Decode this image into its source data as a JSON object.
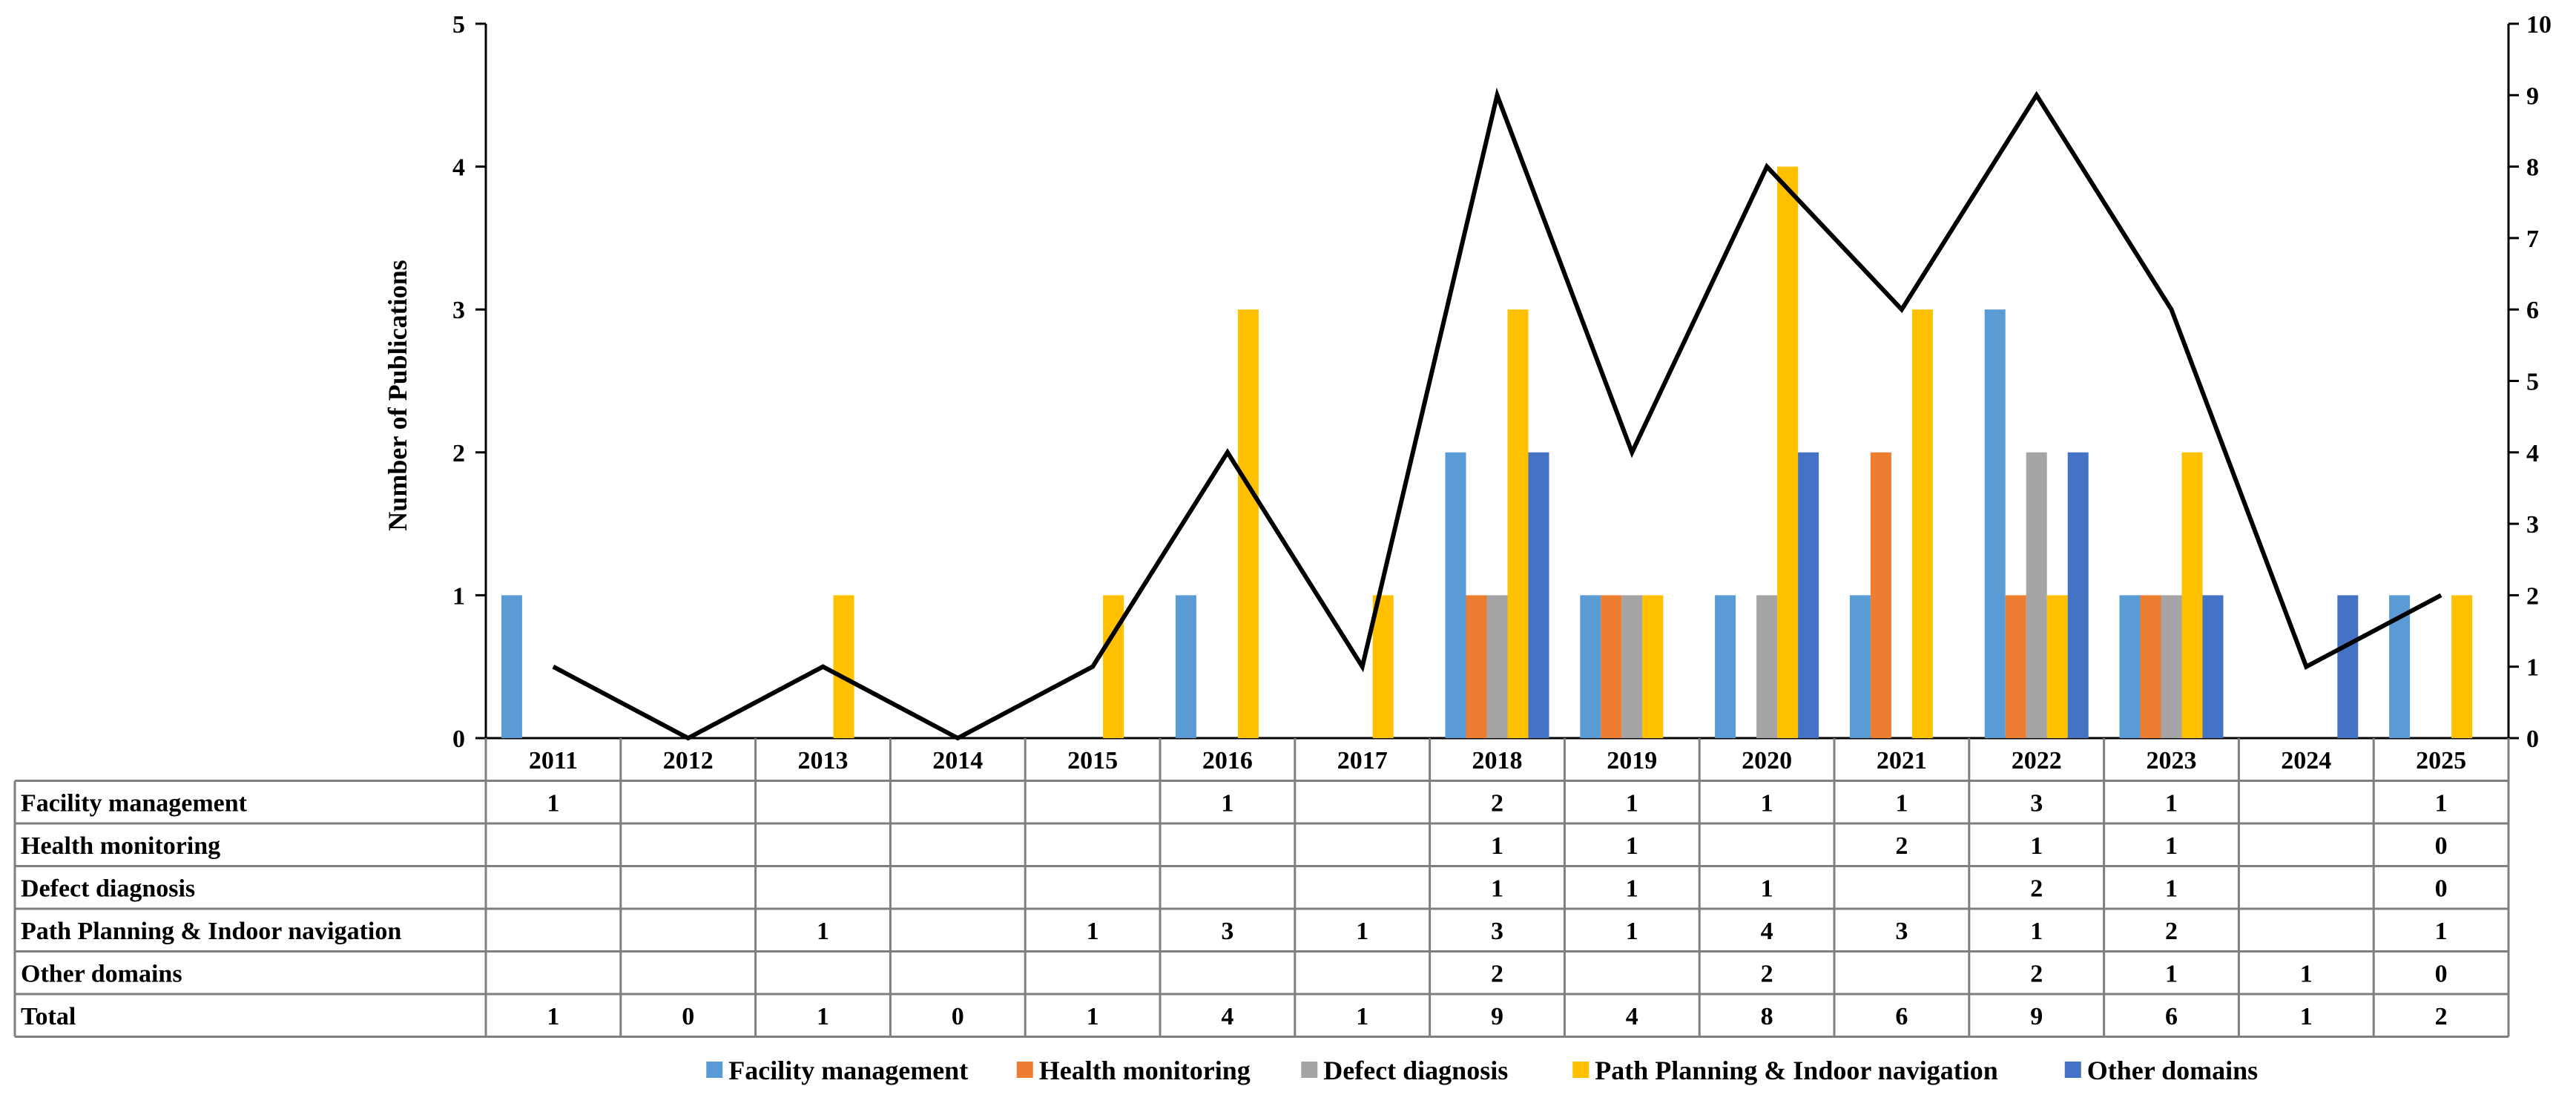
{
  "chart_data": {
    "type": "bar",
    "title": "",
    "ylabel": "Number of Publications",
    "ylim": [
      0,
      5
    ],
    "y2lim": [
      0,
      10
    ],
    "y_ticks": [
      "0",
      "1",
      "2",
      "3",
      "4",
      "5"
    ],
    "y2_ticks": [
      "0",
      "1",
      "2",
      "3",
      "4",
      "5",
      "6",
      "7",
      "8",
      "9",
      "10"
    ],
    "categories": [
      "2011",
      "2012",
      "2013",
      "2014",
      "2015",
      "2016",
      "2017",
      "2018",
      "2019",
      "2020",
      "2021",
      "2022",
      "2023",
      "2024",
      "2025"
    ],
    "series": [
      {
        "name": "Facility management",
        "color": "#5B9BD5",
        "values": [
          1,
          null,
          null,
          null,
          null,
          1,
          null,
          2,
          1,
          1,
          1,
          3,
          1,
          null,
          1
        ],
        "labels": [
          "1",
          "",
          "",
          "",
          "",
          "1",
          "",
          "2",
          "1",
          "1",
          "1",
          "3",
          "1",
          "",
          "1"
        ]
      },
      {
        "name": "Health monitoring",
        "color": "#ED7D31",
        "values": [
          null,
          null,
          null,
          null,
          null,
          null,
          null,
          1,
          1,
          null,
          2,
          1,
          1,
          null,
          0
        ],
        "labels": [
          "",
          "",
          "",
          "",
          "",
          "",
          "",
          "1",
          "1",
          "",
          "2",
          "1",
          "1",
          "",
          "0"
        ]
      },
      {
        "name": "Defect diagnosis",
        "color": "#A5A5A5",
        "values": [
          null,
          null,
          null,
          null,
          null,
          null,
          null,
          1,
          1,
          1,
          null,
          2,
          1,
          null,
          0
        ],
        "labels": [
          "",
          "",
          "",
          "",
          "",
          "",
          "",
          "1",
          "1",
          "1",
          "",
          "2",
          "1",
          "",
          "0"
        ]
      },
      {
        "name": "Path Planning & Indoor navigation",
        "color": "#FFC000",
        "values": [
          null,
          null,
          1,
          null,
          1,
          3,
          1,
          3,
          1,
          4,
          3,
          1,
          2,
          null,
          1
        ],
        "labels": [
          "",
          "",
          "1",
          "",
          "1",
          "3",
          "1",
          "3",
          "1",
          "4",
          "3",
          "1",
          "2",
          "",
          "1"
        ]
      },
      {
        "name": "Other  domains",
        "color": "#4472C4",
        "values": [
          null,
          null,
          null,
          null,
          null,
          null,
          null,
          2,
          null,
          2,
          null,
          2,
          1,
          1,
          0
        ],
        "labels": [
          "",
          "",
          "",
          "",
          "",
          "",
          "",
          "2",
          "",
          "2",
          "",
          "2",
          "1",
          "1",
          "0"
        ]
      }
    ],
    "line": {
      "name": "Total",
      "axis": "right",
      "color": "#000000",
      "values": [
        1,
        0,
        1,
        0,
        1,
        4,
        1,
        9,
        4,
        8,
        6,
        9,
        6,
        1,
        2
      ],
      "labels": [
        "1",
        "0",
        "1",
        "0",
        "1",
        "4",
        "1",
        "9",
        "4",
        "8",
        "6",
        "9",
        "6",
        "1",
        "2"
      ]
    },
    "legend": "bottom",
    "data_table": true
  }
}
